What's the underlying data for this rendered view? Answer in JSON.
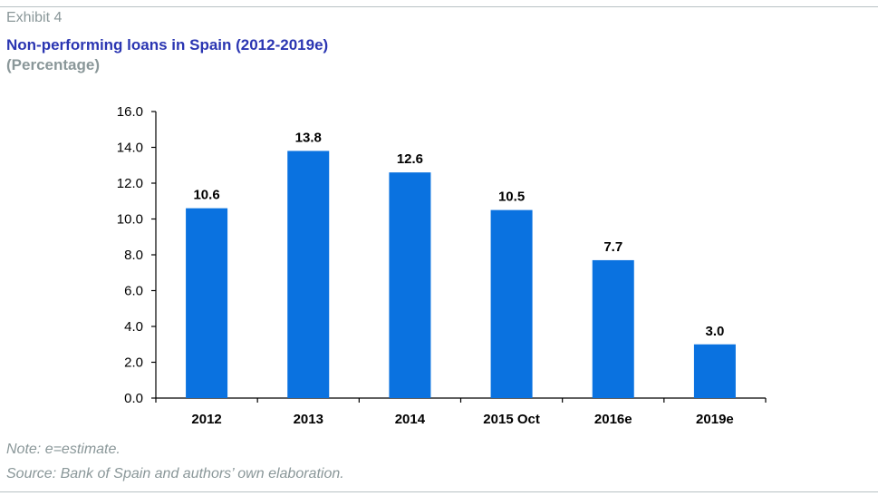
{
  "exhibit_label": "Exhibit 4",
  "title": "Non-performing loans in Spain (2012-2019e)",
  "subtitle": "(Percentage)",
  "note": "Note: e=estimate.",
  "source": "Source: Bank of Spain and authors’ own elaboration.",
  "colors": {
    "bar": "#0a72e0",
    "title": "#2b36b2",
    "muted": "#8a9799",
    "axis": "#000000"
  },
  "chart_data": {
    "type": "bar",
    "categories": [
      "2012",
      "2013",
      "2014",
      "2015 Oct",
      "2016e",
      "2019e"
    ],
    "values": [
      10.6,
      13.8,
      12.6,
      10.5,
      7.7,
      3.0
    ],
    "data_labels": [
      "10.6",
      "13.8",
      "12.6",
      "10.5",
      "7.7",
      "3.0"
    ],
    "title": "Non-performing loans in Spain (2012-2019e)",
    "subtitle": "(Percentage)",
    "xlabel": "",
    "ylabel": "",
    "ylim": [
      0,
      16
    ],
    "yticks": [
      0,
      2,
      4,
      6,
      8,
      10,
      12,
      14,
      16
    ],
    "ytick_labels": [
      "0.0",
      "2.0",
      "4.0",
      "6.0",
      "8.0",
      "10.0",
      "12.0",
      "14.0",
      "16.0"
    ],
    "grid": false,
    "legend": "none"
  }
}
